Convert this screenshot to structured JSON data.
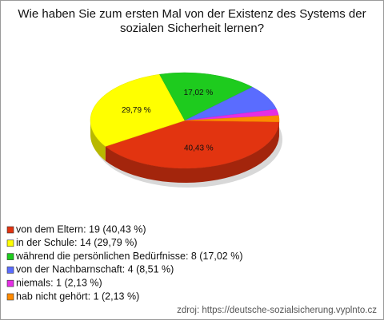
{
  "chart_data": {
    "type": "pie",
    "title": "Wie haben Sie zum ersten Mal von der Existenz des Systems der sozialen Sicherheit lernen?",
    "categories": [
      "von dem Eltern: 19 (40,43 %)",
      "in der Schule: 14 (29,79 %)",
      "während die persönlichen Bedürfnisse: 8 (17,02 %)",
      "von der Nachbarnschaft: 4 (8,51 %)",
      "niemals: 1 (2,13 %)",
      "hab nicht gehört: 1 (2,13 %)"
    ],
    "values": [
      40.43,
      29.79,
      17.02,
      8.51,
      2.13,
      2.13
    ],
    "value_labels": [
      "40,43 %",
      "29,79 %",
      "17,02 %",
      null,
      null,
      null
    ],
    "colors": [
      "#e23410",
      "#ffff00",
      "#1ecb1e",
      "#5a6cff",
      "#e52ee5",
      "#ff8a00"
    ],
    "source": "zdroj: https://deutsche-sozialsicherung.vyplnto.cz"
  }
}
